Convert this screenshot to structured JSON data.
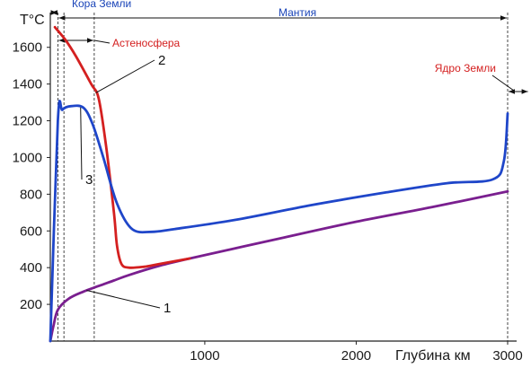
{
  "chart_data": {
    "type": "line",
    "title": "",
    "ylabel": "T°C",
    "xlabel": "Глубина км",
    "x_ticks": [
      1000,
      2000,
      3000
    ],
    "y_ticks": [
      200,
      400,
      600,
      800,
      1000,
      1200,
      1400,
      1600
    ],
    "xlim": [
      -20,
      3000
    ],
    "ylim": [
      0,
      1760
    ],
    "grid": false,
    "regions": [
      {
        "label": "Кора Земли",
        "x_from": -20,
        "x_to": 30,
        "color": "#1a44b8"
      },
      {
        "label": "Мантия",
        "x_from": 30,
        "x_to": 3000,
        "color": "#1a44b8"
      },
      {
        "label": "Астеносфера",
        "x_from": 30,
        "x_to": 270,
        "color": "#d42020"
      },
      {
        "label": "Ядро Земли",
        "x_from": 3000,
        "x_to": 3140,
        "color": "#d42020"
      }
    ],
    "series": [
      {
        "label": "1",
        "color": "#7a1f8f",
        "points": [
          [
            -20,
            0
          ],
          [
            0,
            80
          ],
          [
            30,
            170
          ],
          [
            100,
            230
          ],
          [
            200,
            270
          ],
          [
            300,
            300
          ],
          [
            400,
            330
          ],
          [
            500,
            360
          ],
          [
            700,
            410
          ],
          [
            900,
            450
          ],
          [
            1500,
            560
          ],
          [
            2000,
            650
          ],
          [
            2500,
            730
          ],
          [
            3000,
            815
          ]
        ]
      },
      {
        "label": "2",
        "color": "#d42020",
        "points": [
          [
            10,
            1710
          ],
          [
            80,
            1640
          ],
          [
            150,
            1550
          ],
          [
            250,
            1400
          ],
          [
            300,
            1320
          ],
          [
            350,
            1050
          ],
          [
            400,
            700
          ],
          [
            420,
            520
          ],
          [
            450,
            420
          ],
          [
            500,
            400
          ],
          [
            600,
            405
          ],
          [
            700,
            420
          ],
          [
            900,
            450
          ]
        ]
      },
      {
        "label": "3",
        "color": "#1f46c9",
        "points": [
          [
            -20,
            0
          ],
          [
            30,
            1200
          ],
          [
            60,
            1260
          ],
          [
            120,
            1280
          ],
          [
            200,
            1270
          ],
          [
            260,
            1180
          ],
          [
            330,
            1000
          ],
          [
            420,
            750
          ],
          [
            520,
            610
          ],
          [
            650,
            595
          ],
          [
            800,
            610
          ],
          [
            1200,
            660
          ],
          [
            1700,
            740
          ],
          [
            2200,
            810
          ],
          [
            2600,
            860
          ],
          [
            2900,
            880
          ],
          [
            2975,
            980
          ],
          [
            3000,
            1240
          ]
        ]
      }
    ],
    "vertical_markers": [
      30,
      70,
      270,
      3000
    ],
    "curve_number_positions": {
      "1": 220,
      "2": 280,
      "3": 180
    }
  }
}
